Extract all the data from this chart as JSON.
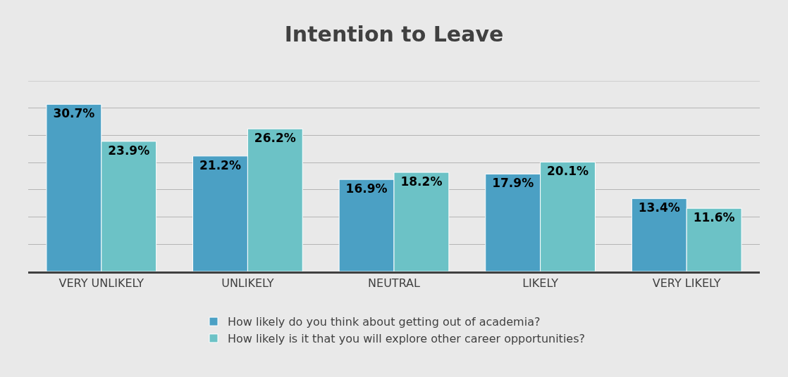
{
  "chart_data": {
    "type": "bar",
    "title": "Intention to Leave",
    "categories": [
      "VERY UNLIKELY",
      "UNLIKELY",
      "NEUTRAL",
      "LIKELY",
      "VERY LIKELY"
    ],
    "series": [
      {
        "name": "How likely do you think about getting out of academia?",
        "color": "#4ba0c4",
        "values": [
          30.7,
          21.2,
          16.9,
          17.9,
          13.4
        ],
        "value_labels": [
          "30.7%",
          "21.2%",
          "16.9%",
          "17.9%",
          "13.4%"
        ]
      },
      {
        "name": "How likely is it that you will explore other career opportunities?",
        "color": "#6cc2c6",
        "values": [
          23.9,
          26.2,
          18.2,
          20.1,
          11.6
        ],
        "value_labels": [
          "23.9%",
          "26.2%",
          "18.2%",
          "20.1%",
          "11.6%"
        ]
      }
    ],
    "ylim": [
      0,
      35
    ],
    "yticks": [
      {
        "value": 0,
        "label": null
      },
      {
        "value": 5,
        "label": null
      },
      {
        "value": 10,
        "label": null
      },
      {
        "value": 15,
        "label": null
      },
      {
        "value": 20,
        "label": null
      },
      {
        "value": 25,
        "label": null
      },
      {
        "value": 30,
        "label": null
      },
      {
        "value": 35,
        "label": null
      }
    ],
    "grid": "y",
    "legend": "bottom",
    "tick_labels": "x"
  }
}
